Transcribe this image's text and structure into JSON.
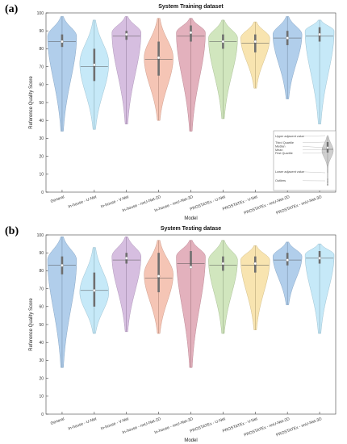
{
  "chart_data": [
    {
      "type": "violin",
      "panel_label": "(a)",
      "title": "System Training dataset",
      "xlabel": "Model",
      "ylabel": "Reference Quality Score",
      "ylim": [
        0,
        100
      ],
      "yticks": [
        0,
        10,
        20,
        30,
        40,
        50,
        60,
        70,
        80,
        90,
        100
      ],
      "categories": [
        "General",
        "In-house - U-Net",
        "In-house - V-Net",
        "In-house - nnU-Net-2D",
        "In-house - nnU-Net-3D",
        "PROSTATEx - U-Net",
        "PROSTATEx - V-Net",
        "PROSTATEx - nnU-Net-2D",
        "PROSTATEx - nnU-Net-3D"
      ],
      "colors": [
        "#9ec2e6",
        "#b8e3f6",
        "#ccaed8",
        "#f2b7a3",
        "#dc9ead",
        "#c6e0ae",
        "#f6dd9c",
        "#9ec2e6",
        "#b8e3f6"
      ],
      "series": [
        {
          "min": 34,
          "max": 98,
          "mode": 87,
          "q1": 81,
          "median": 84,
          "mean": 84,
          "q3": 88
        },
        {
          "min": 35,
          "max": 96,
          "mode": 72,
          "q1": 62,
          "median": 71,
          "mean": 70,
          "q3": 80
        },
        {
          "min": 38,
          "max": 98,
          "mode": 89,
          "q1": 85,
          "median": 88,
          "mean": 87,
          "q3": 90
        },
        {
          "min": 40,
          "max": 97,
          "mode": 75,
          "q1": 65,
          "median": 75,
          "mean": 74,
          "q3": 84
        },
        {
          "min": 34,
          "max": 97,
          "mode": 89,
          "q1": 84,
          "median": 89,
          "mean": 87,
          "q3": 93
        },
        {
          "min": 41,
          "max": 96,
          "mode": 86,
          "q1": 80,
          "median": 84,
          "mean": 84,
          "q3": 88
        },
        {
          "min": 58,
          "max": 95,
          "mode": 86,
          "q1": 78,
          "median": 84,
          "mean": 83,
          "q3": 88
        },
        {
          "min": 52,
          "max": 98,
          "mode": 88,
          "q1": 82,
          "median": 86,
          "mean": 86,
          "q3": 90
        },
        {
          "min": 38,
          "max": 96,
          "mode": 90,
          "q1": 84,
          "median": 88,
          "mean": 87,
          "q3": 92
        }
      ],
      "legend": {
        "items": [
          "Upper adjacent value",
          "Third Quartile",
          "Median",
          "Mean",
          "First Quartile",
          "Lower adjacent value",
          "Outliers"
        ]
      }
    },
    {
      "type": "violin",
      "panel_label": "(b)",
      "title": "System Testing datase",
      "xlabel": "Model",
      "ylabel": "Reference Quality Score",
      "ylim": [
        0,
        100
      ],
      "yticks": [
        0,
        10,
        20,
        30,
        40,
        50,
        60,
        70,
        80,
        90,
        100
      ],
      "categories": [
        "General",
        "In-house - U-Net",
        "In-house - V-Net",
        "In-house - nnU-Net-2D",
        "In-house - nnU-Net-3D",
        "PROSTATEx - U-Net",
        "PROSTATEx - V-Net",
        "PROSTATEx - nnU-Net-2D",
        "PROSTATEx - nnU-Net-3D"
      ],
      "colors": [
        "#9ec2e6",
        "#b8e3f6",
        "#ccaed8",
        "#f2b7a3",
        "#dc9ead",
        "#c6e0ae",
        "#f6dd9c",
        "#9ec2e6",
        "#b8e3f6"
      ],
      "series": [
        {
          "min": 26,
          "max": 99,
          "mode": 86,
          "q1": 78,
          "median": 83,
          "mean": 83,
          "q3": 88
        },
        {
          "min": 45,
          "max": 93,
          "mode": 68,
          "q1": 60,
          "median": 69,
          "mean": 69,
          "q3": 79
        },
        {
          "min": 46,
          "max": 99,
          "mode": 88,
          "q1": 84,
          "median": 87,
          "mean": 86,
          "q3": 90
        },
        {
          "min": 45,
          "max": 97,
          "mode": 78,
          "q1": 68,
          "median": 77,
          "mean": 76,
          "q3": 90
        },
        {
          "min": 26,
          "max": 97,
          "mode": 88,
          "q1": 82,
          "median": 82,
          "mean": 84,
          "q3": 91
        },
        {
          "min": 45,
          "max": 97,
          "mode": 86,
          "q1": 80,
          "median": 84,
          "mean": 83,
          "q3": 88
        },
        {
          "min": 47,
          "max": 94,
          "mode": 86,
          "q1": 79,
          "median": 84,
          "mean": 83,
          "q3": 88
        },
        {
          "min": 61,
          "max": 96,
          "mode": 88,
          "q1": 83,
          "median": 86,
          "mean": 86,
          "q3": 90
        },
        {
          "min": 45,
          "max": 95,
          "mode": 89,
          "q1": 84,
          "median": 87,
          "mean": 87,
          "q3": 91
        }
      ]
    }
  ]
}
